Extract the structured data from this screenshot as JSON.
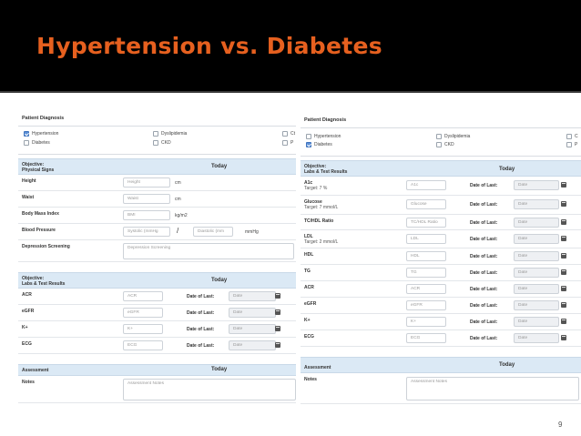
{
  "slide": {
    "title": "Hypertension vs. Diabetes",
    "page_number": "9"
  },
  "left": {
    "diagnosis": {
      "title": "Patient Diagnosis",
      "items": [
        {
          "label": "Hypertension",
          "checked": true
        },
        {
          "label": "Diabetes",
          "checked": false
        },
        {
          "label": "Dyslipidemia",
          "checked": false
        },
        {
          "label": "CKD",
          "checked": false
        },
        {
          "label": "Ct",
          "checked": false
        },
        {
          "label": "P",
          "checked": false
        }
      ]
    },
    "physical": {
      "header_label": "Objective:\nPhysical Signs",
      "today": "Today",
      "height": {
        "label": "Height",
        "placeholder": "Height",
        "unit": "cm"
      },
      "waist": {
        "label": "Waist",
        "placeholder": "Waist",
        "unit": "cm"
      },
      "bmi": {
        "label": "Body Mass Index",
        "placeholder": "BMI",
        "unit": "kg/m2"
      },
      "bp": {
        "label": "Blood Pressure",
        "systolic": "Systolic (mmHg",
        "slash": "/",
        "diastolic": "Diastolic (mm",
        "unit": "mmHg"
      },
      "depression": {
        "label": "Depression Screening",
        "placeholder": "Depression Screening"
      }
    },
    "labs": {
      "header_label": "Objective:\nLabs & Test Results",
      "today": "Today",
      "date_of_last": "Date of Last:",
      "date_placeholder": "Date",
      "rows": [
        {
          "label": "ACR",
          "placeholder": "ACR"
        },
        {
          "label": "eGFR",
          "placeholder": "eGFR"
        },
        {
          "label": "K+",
          "placeholder": "K+"
        },
        {
          "label": "ECG",
          "placeholder": "ECG"
        }
      ]
    },
    "assessment": {
      "header_label": "Assessment",
      "today": "Today",
      "notes_label": "Notes",
      "notes_placeholder": "Assessment Notes"
    }
  },
  "right": {
    "diagnosis": {
      "title": "Patient Diagnosis",
      "items": [
        {
          "label": "Hypertension",
          "checked": false
        },
        {
          "label": "Diabetes",
          "checked": true
        },
        {
          "label": "Dyslipidemia",
          "checked": false
        },
        {
          "label": "CKD",
          "checked": false
        },
        {
          "label": "C",
          "checked": false
        },
        {
          "label": "P",
          "checked": false
        }
      ]
    },
    "labs": {
      "header_label": "Objective:\nLabs & Test Results",
      "today": "Today",
      "date_of_last": "Date of Last:",
      "date_placeholder": "Date",
      "rows": [
        {
          "label": "A1c",
          "sub": "Target: 7 %",
          "placeholder": "A1c"
        },
        {
          "label": "Glucose",
          "sub": "Target: 7 mmol/L",
          "placeholder": "Glucose"
        },
        {
          "label": "TC/HDL Ratio",
          "sub": "",
          "placeholder": "TC/HDL Ratio"
        },
        {
          "label": "LDL",
          "sub": "Target: 2 mmol/L",
          "placeholder": "LDL"
        },
        {
          "label": "HDL",
          "sub": "",
          "placeholder": "HDL"
        },
        {
          "label": "TG",
          "sub": "",
          "placeholder": "TG"
        },
        {
          "label": "ACR",
          "sub": "",
          "placeholder": "ACR"
        },
        {
          "label": "eGFR",
          "sub": "",
          "placeholder": "eGFR"
        },
        {
          "label": "K+",
          "sub": "",
          "placeholder": "K+"
        },
        {
          "label": "ECG",
          "sub": "",
          "placeholder": "ECG"
        }
      ]
    },
    "assessment": {
      "header_label": "Assessment",
      "today": "Today",
      "notes_label": "Notes",
      "notes_placeholder": "Assessment Notes"
    }
  },
  "colors": {
    "title": "#e6601f",
    "header_bg": "#000000",
    "section_bg": "#dbe9f5",
    "checkbox_on": "#5b8fd6"
  }
}
